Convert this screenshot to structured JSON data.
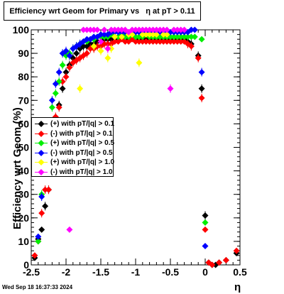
{
  "title": "Efficiency wrt Geom for Primary vs   η at pT > 0.11",
  "footer": "Wed Sep 18 16:37:33 2024",
  "chart_data": {
    "type": "scatter",
    "title": "Efficiency wrt Geom for Primary vs   η at pT > 0.11",
    "xlabel": "η",
    "ylabel": "Efficiency wrt Geom (%)",
    "xlim": [
      -2.5,
      0.5
    ],
    "ylim": [
      0,
      100
    ],
    "xticks": [
      "-2.5",
      "-2",
      "-1.5",
      "-1",
      "-0.5",
      "0",
      "0.5"
    ],
    "yticks": [
      "0",
      "10",
      "20",
      "30",
      "40",
      "50",
      "60",
      "70",
      "80",
      "90",
      "100"
    ],
    "legend_position": "left-middle",
    "series": [
      {
        "name": "(+) with pT/|q| > 0.1",
        "color": "#000000",
        "points": [
          [
            -2.45,
            3
          ],
          [
            -2.4,
            11
          ],
          [
            -2.35,
            15
          ],
          [
            -2.3,
            25
          ],
          [
            -2.25,
            32
          ],
          [
            -2.15,
            60
          ],
          [
            -2.1,
            68
          ],
          [
            -2.05,
            75
          ],
          [
            -2.0,
            82
          ],
          [
            -1.95,
            85
          ],
          [
            -1.9,
            88
          ],
          [
            -1.85,
            90
          ],
          [
            -1.8,
            92
          ],
          [
            -1.75,
            93
          ],
          [
            -1.7,
            93
          ],
          [
            -1.65,
            94
          ],
          [
            -1.6,
            94
          ],
          [
            -1.55,
            95
          ],
          [
            -1.5,
            95
          ],
          [
            -1.45,
            96
          ],
          [
            -1.4,
            96
          ],
          [
            -1.35,
            96
          ],
          [
            -1.3,
            96
          ],
          [
            -1.25,
            96
          ],
          [
            -1.2,
            97
          ],
          [
            -1.15,
            96
          ],
          [
            -1.1,
            96
          ],
          [
            -1.05,
            97
          ],
          [
            -1.0,
            96
          ],
          [
            -0.95,
            96
          ],
          [
            -0.9,
            96
          ],
          [
            -0.85,
            96
          ],
          [
            -0.8,
            96
          ],
          [
            -0.75,
            96
          ],
          [
            -0.7,
            96
          ],
          [
            -0.65,
            96
          ],
          [
            -0.6,
            96
          ],
          [
            -0.55,
            96
          ],
          [
            -0.5,
            96
          ],
          [
            -0.45,
            96
          ],
          [
            -0.4,
            96
          ],
          [
            -0.35,
            96
          ],
          [
            -0.3,
            96
          ],
          [
            -0.25,
            95
          ],
          [
            -0.2,
            94
          ],
          [
            -0.1,
            89
          ],
          [
            -0.05,
            75
          ],
          [
            0.0,
            21
          ],
          [
            0.05,
            1
          ],
          [
            0.1,
            0
          ],
          [
            0.15,
            0
          ],
          [
            0.2,
            1
          ],
          [
            0.3,
            2
          ],
          [
            0.45,
            5
          ]
        ]
      },
      {
        "name": "(-) with pT/|q| > 0.1",
        "color": "#ff0000",
        "points": [
          [
            -2.45,
            4
          ],
          [
            -2.4,
            10
          ],
          [
            -2.35,
            22
          ],
          [
            -2.3,
            32
          ],
          [
            -2.25,
            32
          ],
          [
            -2.15,
            63
          ],
          [
            -2.1,
            67
          ],
          [
            -2.05,
            78
          ],
          [
            -2.0,
            80
          ],
          [
            -1.95,
            84
          ],
          [
            -1.9,
            86
          ],
          [
            -1.85,
            87
          ],
          [
            -1.8,
            88
          ],
          [
            -1.75,
            89
          ],
          [
            -1.7,
            90
          ],
          [
            -1.65,
            92
          ],
          [
            -1.6,
            92
          ],
          [
            -1.55,
            93
          ],
          [
            -1.5,
            93
          ],
          [
            -1.45,
            94
          ],
          [
            -1.4,
            94
          ],
          [
            -1.35,
            94
          ],
          [
            -1.3,
            95
          ],
          [
            -1.25,
            95
          ],
          [
            -1.2,
            96
          ],
          [
            -1.15,
            95
          ],
          [
            -1.1,
            95
          ],
          [
            -1.05,
            96
          ],
          [
            -1.0,
            95
          ],
          [
            -0.95,
            95
          ],
          [
            -0.9,
            95
          ],
          [
            -0.85,
            95
          ],
          [
            -0.8,
            95
          ],
          [
            -0.75,
            95
          ],
          [
            -0.7,
            95
          ],
          [
            -0.65,
            95
          ],
          [
            -0.6,
            95
          ],
          [
            -0.55,
            95
          ],
          [
            -0.5,
            95
          ],
          [
            -0.45,
            95
          ],
          [
            -0.4,
            95
          ],
          [
            -0.35,
            95
          ],
          [
            -0.3,
            95
          ],
          [
            -0.25,
            94
          ],
          [
            -0.2,
            93
          ],
          [
            -0.1,
            88
          ],
          [
            -0.05,
            71
          ],
          [
            0.0,
            15
          ],
          [
            0.05,
            1
          ],
          [
            0.1,
            0
          ],
          [
            0.2,
            1
          ],
          [
            0.3,
            2
          ],
          [
            0.45,
            6
          ]
        ]
      },
      {
        "name": "(+) with pT/|q| > 0.5",
        "color": "#00ee00",
        "points": [
          [
            -2.4,
            10
          ],
          [
            -2.35,
            30
          ],
          [
            -2.25,
            50
          ],
          [
            -2.2,
            67
          ],
          [
            -2.15,
            73
          ],
          [
            -2.1,
            78
          ],
          [
            -2.05,
            85
          ],
          [
            -2.0,
            89
          ],
          [
            -1.95,
            90
          ],
          [
            -1.9,
            92
          ],
          [
            -1.85,
            93
          ],
          [
            -1.8,
            94
          ],
          [
            -1.75,
            95
          ],
          [
            -1.7,
            95
          ],
          [
            -1.65,
            96
          ],
          [
            -1.6,
            96
          ],
          [
            -1.55,
            97
          ],
          [
            -1.5,
            97
          ],
          [
            -1.45,
            97
          ],
          [
            -1.4,
            97
          ],
          [
            -1.35,
            98
          ],
          [
            -1.3,
            97
          ],
          [
            -1.25,
            97
          ],
          [
            -1.2,
            98
          ],
          [
            -1.15,
            97
          ],
          [
            -1.1,
            97
          ],
          [
            -1.05,
            98
          ],
          [
            -1.0,
            97
          ],
          [
            -0.95,
            97
          ],
          [
            -0.9,
            97
          ],
          [
            -0.85,
            98
          ],
          [
            -0.8,
            97
          ],
          [
            -0.75,
            97
          ],
          [
            -0.7,
            97
          ],
          [
            -0.65,
            97
          ],
          [
            -0.6,
            97
          ],
          [
            -0.55,
            97
          ],
          [
            -0.5,
            97
          ],
          [
            -0.45,
            97
          ],
          [
            -0.4,
            97
          ],
          [
            -0.35,
            97
          ],
          [
            -0.3,
            97
          ],
          [
            -0.25,
            97
          ],
          [
            -0.2,
            97
          ],
          [
            -0.15,
            97
          ],
          [
            -0.05,
            96
          ],
          [
            0.0,
            18
          ]
        ]
      },
      {
        "name": "(-) with pT/|q| > 0.5",
        "color": "#0000ff",
        "points": [
          [
            -2.4,
            12
          ],
          [
            -2.35,
            29
          ],
          [
            -2.25,
            50
          ],
          [
            -2.2,
            70
          ],
          [
            -2.15,
            77
          ],
          [
            -2.1,
            82
          ],
          [
            -2.05,
            90
          ],
          [
            -2.0,
            91
          ],
          [
            -1.95,
            89
          ],
          [
            -1.9,
            92
          ],
          [
            -1.85,
            93
          ],
          [
            -1.8,
            94
          ],
          [
            -1.75,
            95
          ],
          [
            -1.7,
            96
          ],
          [
            -1.65,
            96
          ],
          [
            -1.6,
            97
          ],
          [
            -1.55,
            97
          ],
          [
            -1.5,
            98
          ],
          [
            -1.45,
            98
          ],
          [
            -1.4,
            98
          ],
          [
            -1.35,
            99
          ],
          [
            -1.3,
            99
          ],
          [
            -1.25,
            99
          ],
          [
            -1.2,
            99
          ],
          [
            -1.15,
            99
          ],
          [
            -1.1,
            99
          ],
          [
            -1.05,
            99
          ],
          [
            -1.0,
            99
          ],
          [
            -0.95,
            99
          ],
          [
            -0.9,
            99
          ],
          [
            -0.85,
            99
          ],
          [
            -0.8,
            99
          ],
          [
            -0.75,
            99
          ],
          [
            -0.7,
            99
          ],
          [
            -0.65,
            99
          ],
          [
            -0.6,
            99
          ],
          [
            -0.55,
            99
          ],
          [
            -0.5,
            99
          ],
          [
            -0.45,
            99
          ],
          [
            -0.4,
            99
          ],
          [
            -0.35,
            99
          ],
          [
            -0.3,
            99
          ],
          [
            -0.25,
            99
          ],
          [
            -0.2,
            100
          ],
          [
            -0.15,
            100
          ],
          [
            -0.05,
            82
          ],
          [
            0.0,
            8
          ]
        ]
      },
      {
        "name": "(+) with pT/|q| > 1.0",
        "color": "#ffff00",
        "points": [
          [
            -1.8,
            75
          ],
          [
            -1.6,
            93
          ],
          [
            -1.5,
            91
          ],
          [
            -1.4,
            88
          ],
          [
            -1.35,
            92
          ],
          [
            -1.3,
            97
          ],
          [
            -1.2,
            97
          ],
          [
            -1.1,
            98
          ],
          [
            -1.05,
            98
          ],
          [
            -0.95,
            86
          ],
          [
            -0.9,
            98
          ],
          [
            -0.85,
            98
          ],
          [
            -0.8,
            98
          ],
          [
            -0.75,
            98
          ],
          [
            -0.7,
            98
          ],
          [
            -0.6,
            98
          ],
          [
            -0.55,
            98
          ]
        ]
      },
      {
        "name": "(-) with pT/|q| > 1.0",
        "color": "#ff00ff",
        "points": [
          [
            -1.95,
            15
          ],
          [
            -1.75,
            100
          ],
          [
            -1.7,
            100
          ],
          [
            -1.65,
            100
          ],
          [
            -1.6,
            100
          ],
          [
            -1.55,
            100
          ],
          [
            -1.5,
            95
          ],
          [
            -1.45,
            100
          ],
          [
            -1.4,
            92
          ],
          [
            -1.35,
            100
          ],
          [
            -1.3,
            100
          ],
          [
            -1.25,
            100
          ],
          [
            -1.2,
            100
          ],
          [
            -1.15,
            100
          ],
          [
            -1.1,
            99
          ],
          [
            -1.05,
            100
          ],
          [
            -1.0,
            100
          ],
          [
            -0.95,
            100
          ],
          [
            -0.9,
            100
          ],
          [
            -0.85,
            100
          ],
          [
            -0.8,
            100
          ],
          [
            -0.75,
            100
          ],
          [
            -0.7,
            100
          ],
          [
            -0.65,
            100
          ],
          [
            -0.6,
            100
          ],
          [
            -0.55,
            100
          ],
          [
            -0.5,
            75
          ],
          [
            -0.45,
            100
          ],
          [
            -0.4,
            100
          ],
          [
            -0.35,
            100
          ],
          [
            -0.3,
            100
          ]
        ]
      }
    ]
  }
}
